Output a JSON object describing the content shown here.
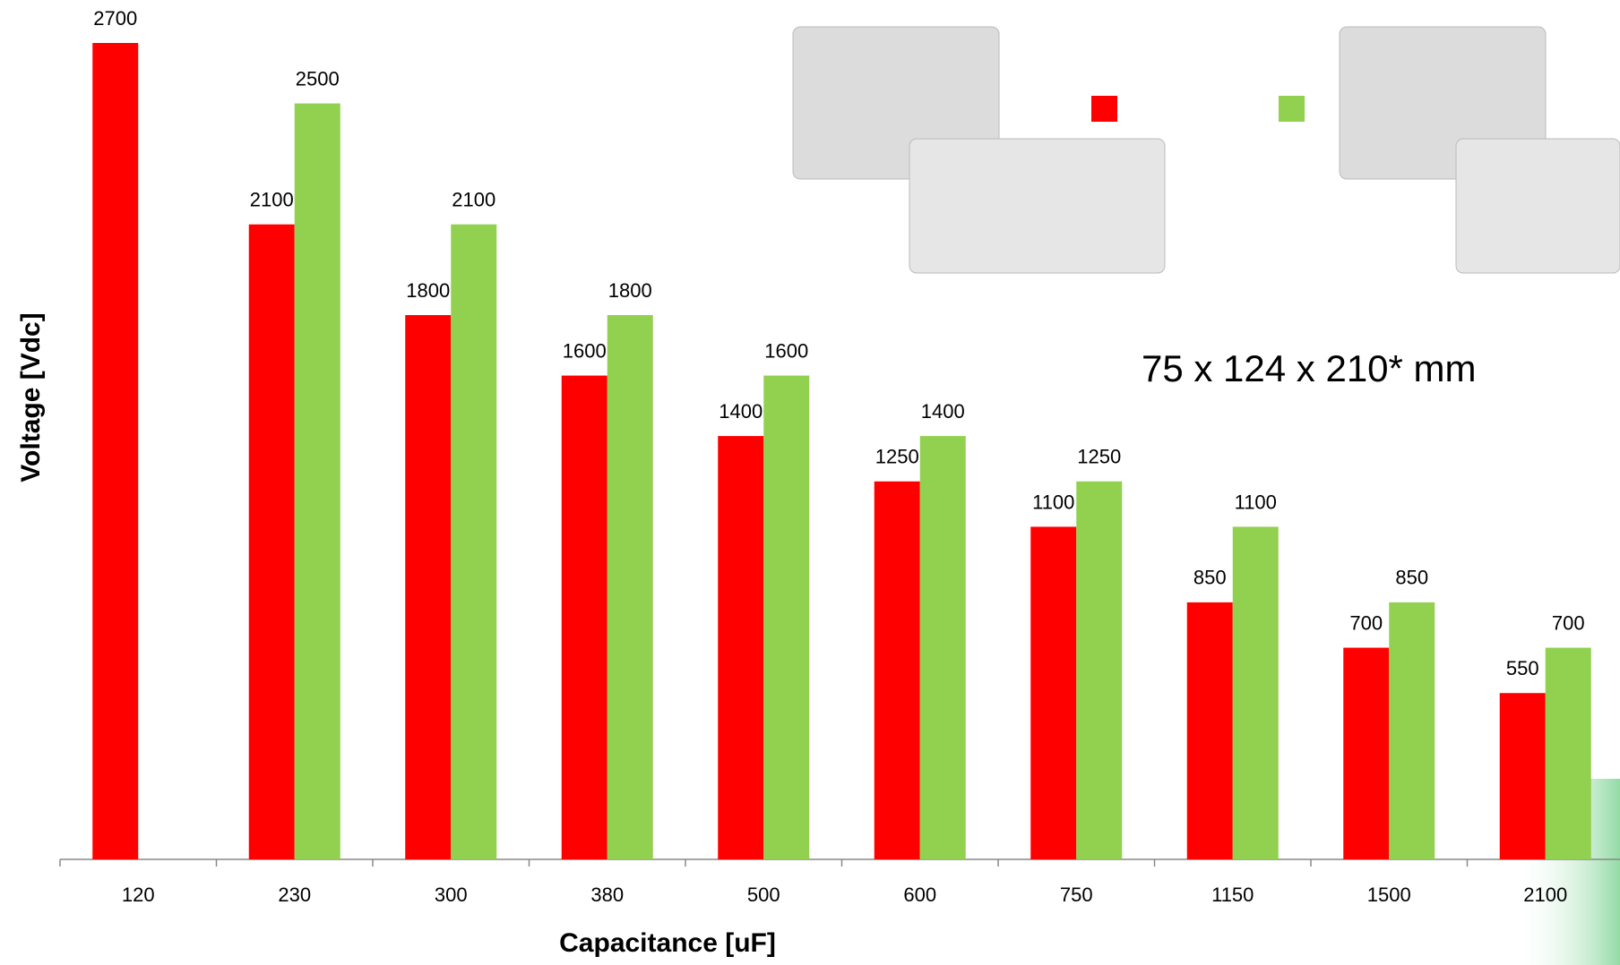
{
  "chart_data": {
    "type": "bar",
    "x_label": "Capacitance [uF]",
    "y_label": "Voltage [Vdc]",
    "annotation": "75 x 124 x 210* mm",
    "categories": [
      "120",
      "230",
      "300",
      "380",
      "500",
      "600",
      "750",
      "1150",
      "1500",
      "2100"
    ],
    "series": [
      {
        "color": "#ff0000",
        "values": [
          2700,
          2100,
          1800,
          1600,
          1400,
          1250,
          1100,
          850,
          700,
          550
        ]
      },
      {
        "color": "#92d050",
        "values": [
          null,
          2500,
          2100,
          1800,
          1600,
          1400,
          1250,
          1100,
          850,
          700
        ]
      }
    ],
    "value_labels_shown": true
  }
}
